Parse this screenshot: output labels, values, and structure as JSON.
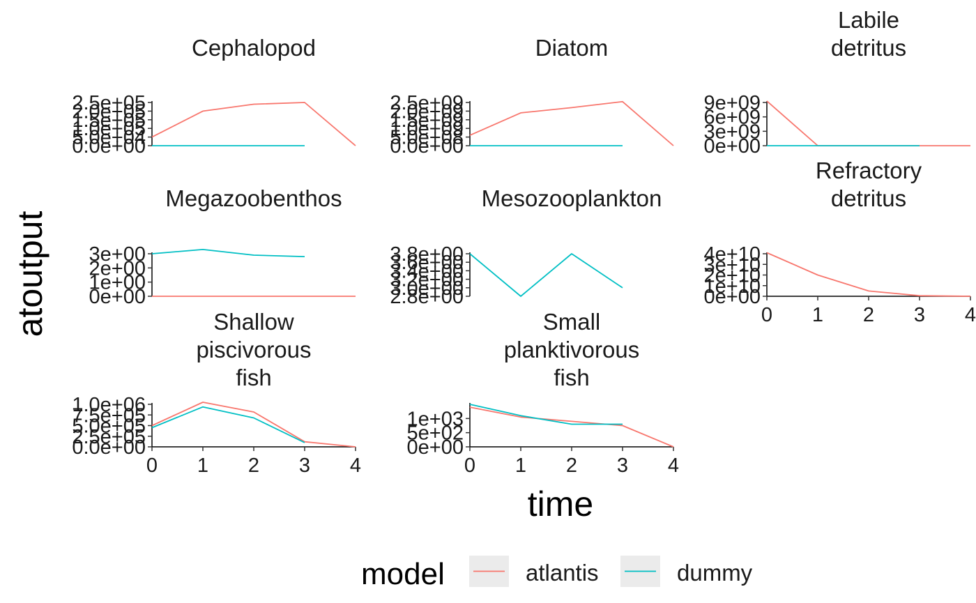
{
  "chart_data": {
    "type": "line",
    "xlabel": "time",
    "ylabel": "atoutput",
    "legend": {
      "title": "model",
      "placement": "bottom",
      "entries": [
        {
          "name": "atlantis",
          "color": "#F8766D"
        },
        {
          "name": "dummy",
          "color": "#00BFC4"
        }
      ]
    },
    "panels": [
      {
        "title": [
          "Cephalopod"
        ],
        "xlim": [
          0,
          4
        ],
        "ylim": [
          0,
          250000
        ],
        "yticks": [
          0,
          50000,
          100000,
          150000,
          200000,
          250000
        ],
        "ytick_labels": [
          "0.0e+00",
          "5.0e+04",
          "1.0e+05",
          "1.5e+05",
          "2.0e+05",
          "2.5e+05"
        ],
        "show_xaxis": false,
        "series": [
          {
            "name": "atlantis",
            "x": [
              0,
              1,
              2,
              3,
              4
            ],
            "y": [
              50000,
              200000,
              240000,
              250000,
              0
            ]
          },
          {
            "name": "dummy",
            "x": [
              0,
              1,
              2,
              3
            ],
            "y": [
              0,
              0,
              0,
              0
            ]
          }
        ]
      },
      {
        "title": [
          "Diatom"
        ],
        "xlim": [
          0,
          4
        ],
        "ylim": [
          0,
          2500000000
        ],
        "yticks": [
          0,
          500000000,
          1000000000,
          1500000000,
          2000000000,
          2500000000
        ],
        "ytick_labels": [
          "0.0e+00",
          "5.0e+08",
          "1.0e+09",
          "1.5e+09",
          "2.0e+09",
          "2.5e+09"
        ],
        "show_xaxis": false,
        "series": [
          {
            "name": "atlantis",
            "x": [
              0,
              1,
              2,
              3,
              4
            ],
            "y": [
              600000000,
              1900000000,
              2200000000,
              2550000000,
              0
            ]
          },
          {
            "name": "dummy",
            "x": [
              0,
              1,
              2,
              3
            ],
            "y": [
              0,
              0,
              0,
              0
            ]
          }
        ]
      },
      {
        "title": [
          "Labile",
          "detritus"
        ],
        "xlim": [
          0,
          4
        ],
        "ylim": [
          0,
          9000000000
        ],
        "yticks": [
          0,
          3000000000,
          6000000000,
          9000000000
        ],
        "ytick_labels": [
          "0e+00",
          "3e+09",
          "6e+09",
          "9e+09"
        ],
        "show_xaxis": false,
        "series": [
          {
            "name": "atlantis",
            "x": [
              0,
              1,
              2,
              3,
              4
            ],
            "y": [
              9300000000,
              0,
              0,
              0,
              0
            ]
          },
          {
            "name": "dummy",
            "x": [
              0,
              1,
              2,
              3
            ],
            "y": [
              0,
              0,
              0,
              0
            ]
          }
        ]
      },
      {
        "title": [
          "Megazoobenthos"
        ],
        "xlim": [
          0,
          4
        ],
        "ylim": [
          0,
          3
        ],
        "yticks": [
          0,
          1,
          2,
          3
        ],
        "ytick_labels": [
          "0e+00",
          "1e+00",
          "2e+00",
          "3e+00"
        ],
        "show_xaxis": false,
        "series": [
          {
            "name": "atlantis",
            "x": [
              0,
              1,
              2,
              3,
              4
            ],
            "y": [
              0,
              0,
              0,
              0,
              0
            ]
          },
          {
            "name": "dummy",
            "x": [
              0,
              1,
              2,
              3
            ],
            "y": [
              3.0,
              3.3,
              2.9,
              2.8
            ]
          }
        ]
      },
      {
        "title": [
          "Mesozooplankton"
        ],
        "xlim": [
          0,
          4
        ],
        "ylim": [
          2.8,
          3.8
        ],
        "yticks": [
          2.8,
          3.0,
          3.2,
          3.4,
          3.6,
          3.8
        ],
        "ytick_labels": [
          "2.8e+00",
          "3.0e+00",
          "3.2e+00",
          "3.4e+00",
          "3.6e+00",
          "3.8e+00"
        ],
        "show_xaxis": false,
        "series": [
          {
            "name": "dummy",
            "x": [
              0,
              1,
              2,
              3
            ],
            "y": [
              3.8,
              2.8,
              3.8,
              3.0
            ]
          }
        ]
      },
      {
        "title": [
          "Refractory",
          "detritus"
        ],
        "xlim": [
          0,
          4
        ],
        "ylim": [
          0,
          40000000000
        ],
        "yticks": [
          0,
          10000000000,
          20000000000,
          30000000000,
          40000000000
        ],
        "ytick_labels": [
          "0e+00",
          "1e+10",
          "2e+10",
          "3e+10",
          "4e+10"
        ],
        "show_xaxis": true,
        "xticks": [
          0,
          1,
          2,
          3,
          4
        ],
        "series": [
          {
            "name": "atlantis",
            "x": [
              0,
              1,
              2,
              3,
              4
            ],
            "y": [
              41000000000,
              20000000000,
              5000000000,
              500000000,
              0
            ]
          }
        ]
      },
      {
        "title": [
          "Shallow",
          "piscivorous",
          "fish"
        ],
        "xlim": [
          0,
          4
        ],
        "ylim": [
          0,
          1000000
        ],
        "yticks": [
          0,
          250000,
          500000,
          750000,
          1000000
        ],
        "ytick_labels": [
          "0.0e+00",
          "2.5e+05",
          "5.0e+05",
          "7.5e+05",
          "1.0e+06"
        ],
        "show_xaxis": true,
        "xticks": [
          0,
          1,
          2,
          3,
          4
        ],
        "series": [
          {
            "name": "atlantis",
            "x": [
              0,
              1,
              2,
              3,
              4
            ],
            "y": [
              500000,
              1050000,
              820000,
              120000,
              0
            ]
          },
          {
            "name": "dummy",
            "x": [
              0,
              1,
              2,
              3
            ],
            "y": [
              450000,
              940000,
              680000,
              100000
            ]
          }
        ]
      },
      {
        "title": [
          "Small",
          "planktivorous",
          "fish"
        ],
        "xlim": [
          0,
          4
        ],
        "ylim": [
          0,
          1500
        ],
        "yticks": [
          0,
          500,
          1000
        ],
        "ytick_labels": [
          "0e+00",
          "5e+02",
          "1e+03"
        ],
        "show_xaxis": true,
        "xticks": [
          0,
          1,
          2,
          3,
          4
        ],
        "series": [
          {
            "name": "atlantis",
            "x": [
              0,
              1,
              2,
              3,
              4
            ],
            "y": [
              1400,
              1050,
              900,
              750,
              0
            ]
          },
          {
            "name": "dummy",
            "x": [
              0,
              1,
              2,
              3
            ],
            "y": [
              1500,
              1100,
              800,
              800
            ]
          }
        ]
      }
    ]
  }
}
